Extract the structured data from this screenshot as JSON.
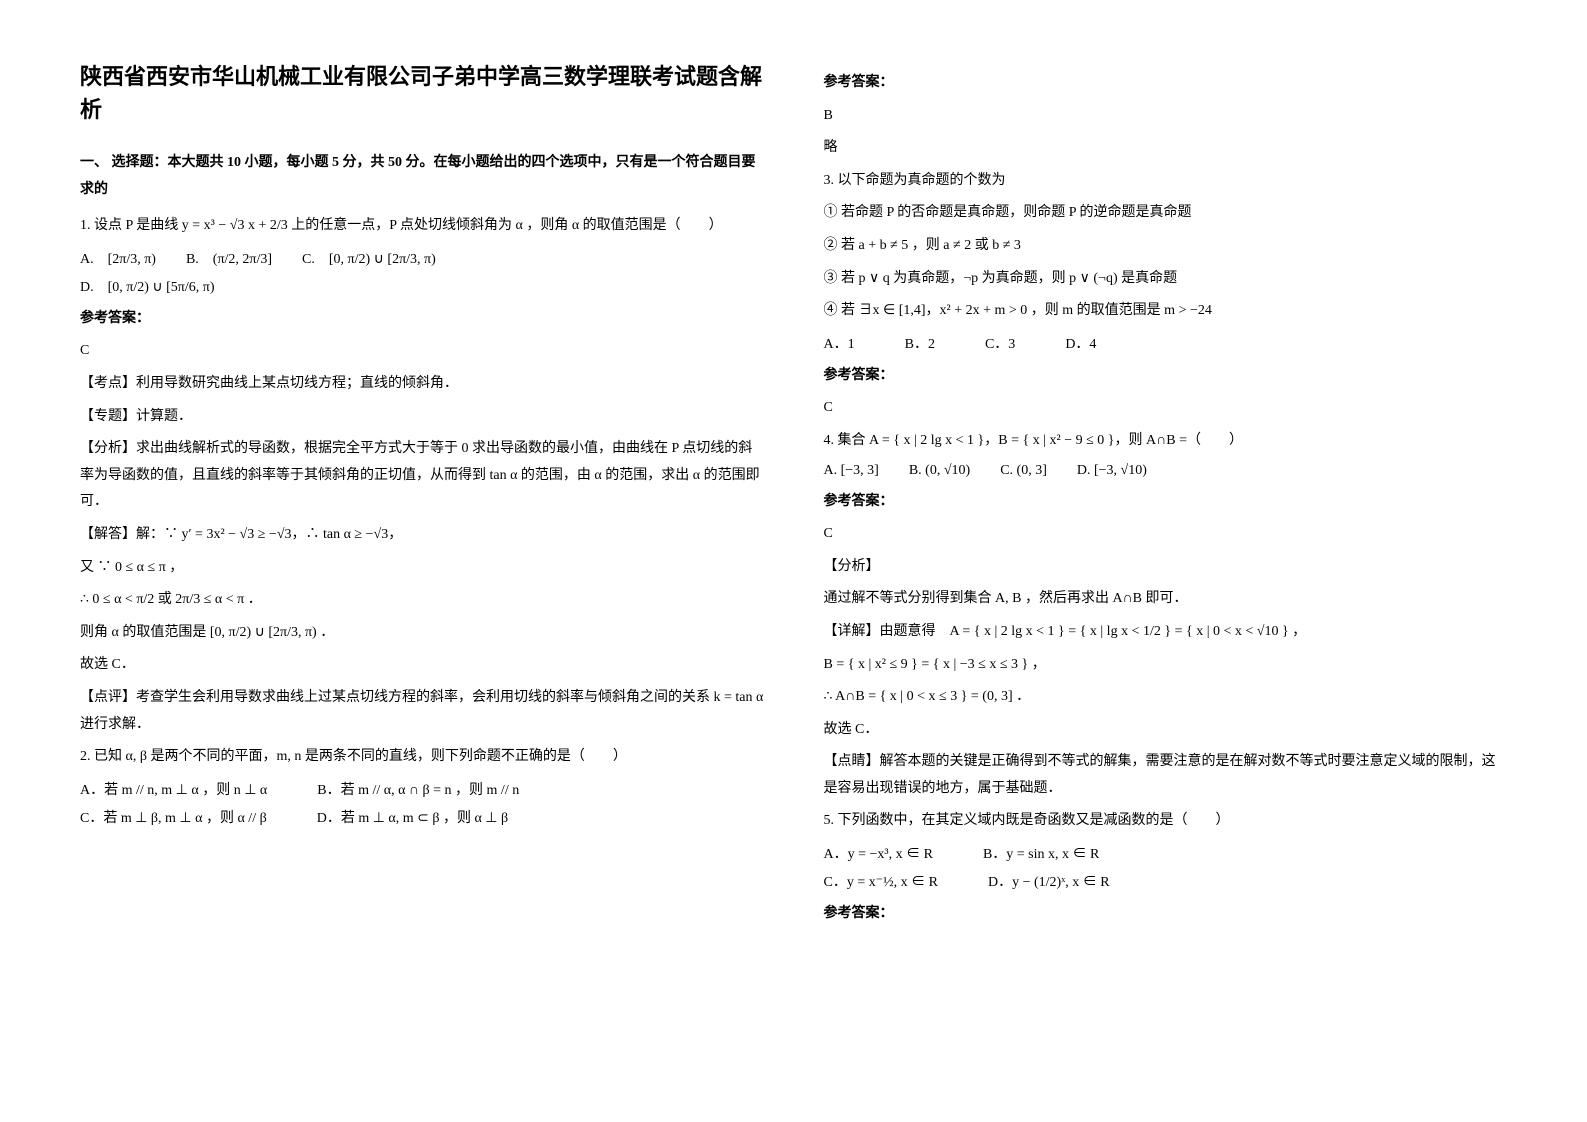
{
  "title": "陕西省西安市华山机械工业有限公司子弟中学高三数学理联考试题含解析",
  "part1_heading": "一、 选择题：本大题共 10 小题，每小题 5 分，共 50 分。在每小题给出的四个选项中，只有是一个符合题目要求的",
  "q1": {
    "stem_before": "1. 设点 P 是曲线 ",
    "stem_formula": "y = x³ − √3 x + 2/3",
    "stem_after": " 上的任意一点，P 点处切线倾斜角为 α ，则角 α 的取值范围是（　　）",
    "optA": "A.　[2π/3, π)",
    "optB": "B.　(π/2, 2π/3]",
    "optC": "C.　[0, π/2) ∪ [2π/3, π)",
    "optD": "D.　[0, π/2) ∪ [5π/6, π)",
    "answer_label": "参考答案：",
    "answer": "C",
    "kd_label": "【考点】利用导数研究曲线上某点切线方程；直线的倾斜角．",
    "zt_label": "【专题】计算题．",
    "fx_label": "【分析】求出曲线解析式的导函数，根据完全平方式大于等于 0 求出导函数的最小值，由曲线在 P 点切线的斜率为导函数的值，且直线的斜率等于其倾斜角的正切值，从而得到 tan α 的范围，由 α 的范围，求出 α 的范围即可．",
    "jd1": "【解答】解：∵ y′ = 3x² − √3 ≥ −√3，∴ tan α ≥ −√3，",
    "jd2": "又 ∵ 0 ≤ α ≤ π ，",
    "jd3": "∴ 0 ≤ α < π/2 或 2π/3 ≤ α < π ．",
    "jd4": "则角 α 的取值范围是 [0, π/2) ∪ [2π/3, π) ．",
    "jd5": "故选 C．",
    "dp_label": "【点评】考查学生会利用导数求曲线上过某点切线方程的斜率，会利用切线的斜率与倾斜角之间的关系 k = tan α 进行求解．"
  },
  "q2": {
    "stem": "2. 已知 α, β 是两个不同的平面，m, n 是两条不同的直线，则下列命题不正确的是（　　）",
    "optA": "A．若 m // n, m ⊥ α ，则 n ⊥ α",
    "optB": "B．若 m // α, α ∩ β = n ，则 m // n",
    "optC": "C．若 m ⊥ β, m ⊥ α ，则 α // β",
    "optD": "D．若 m ⊥ α, m ⊂ β ，则 α ⊥ β",
    "answer_label": "参考答案：",
    "answer": "B",
    "略": "略"
  },
  "q3": {
    "stem": "3. 以下命题为真命题的个数为",
    "l1": "① 若命题 P 的否命题是真命题，则命题 P 的逆命题是真命题",
    "l2": "② 若 a + b ≠ 5 ，则 a ≠ 2 或 b ≠ 3",
    "l3": "③ 若 p ∨ q 为真命题，¬p 为真命题，则 p ∨ (¬q) 是真命题",
    "l4": "④ 若 ∃x ∈ [1,4]，x² + 2x + m > 0 ，则 m 的取值范围是 m > −24",
    "optA": "A．1",
    "optB": "B．2",
    "optC": "C．3",
    "optD": "D．4",
    "answer_label": "参考答案：",
    "answer": "C"
  },
  "q4": {
    "stem": "4. 集合 A = { x | 2 lg x < 1 }，B = { x | x² − 9 ≤ 0 }，则 A∩B =（　　）",
    "optA": "A. [−3, 3]",
    "optB": "B. (0, √10)",
    "optC": "C. (0, 3]",
    "optD": "D. [−3, √10)",
    "answer_label": "参考答案：",
    "answer": "C",
    "fx_label": "【分析】",
    "fx_body": "通过解不等式分别得到集合 A, B ，然后再求出 A∩B 即可．",
    "xj1": "【详解】由题意得　A = { x | 2 lg x < 1 } = { x | lg x < 1/2 } = { x | 0 < x < √10 } ，",
    "xj2": "B = { x | x² ≤ 9 } = { x | −3 ≤ x ≤ 3 } ，",
    "xj3": "∴ A∩B = { x | 0 < x ≤ 3 } = (0, 3] ．",
    "xj4": "故选 C．",
    "dj": "【点睛】解答本题的关键是正确得到不等式的解集，需要注意的是在解对数不等式时要注意定义域的限制，这是容易出现错误的地方，属于基础题．"
  },
  "q5": {
    "stem": "5. 下列函数中，在其定义域内既是奇函数又是减函数的是（　　）",
    "optA": "A．y = −x³, x ∈ R",
    "optB": "B．y = sin x, x ∈ R",
    "optC": "C．y = x⁻½, x ∈ R",
    "optD": "D．y − (1/2)ˣ, x ∈ R",
    "answer_label": "参考答案："
  }
}
